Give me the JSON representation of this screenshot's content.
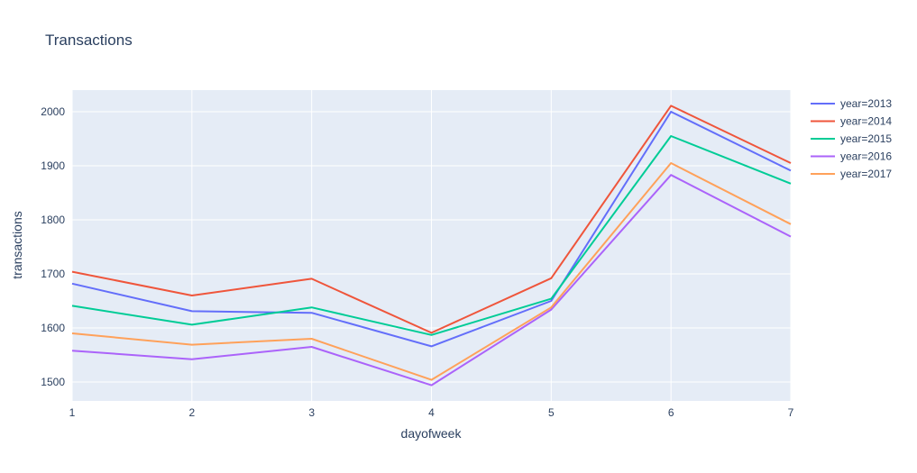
{
  "chart_data": {
    "type": "line",
    "title": "Transactions",
    "xlabel": "dayofweek",
    "ylabel": "transactions",
    "x": [
      1,
      2,
      3,
      4,
      5,
      6,
      7
    ],
    "xlim": [
      1,
      7
    ],
    "ylim": [
      1465,
      2040
    ],
    "yticks": [
      1500,
      1600,
      1700,
      1800,
      1900,
      2000
    ],
    "xticks": [
      1,
      2,
      3,
      4,
      5,
      6,
      7
    ],
    "grid": true,
    "legend_position": "top-right",
    "plot_background": "#e5ecf6",
    "series": [
      {
        "name": "year=2013",
        "color": "#636efa",
        "values": [
          1682,
          1631,
          1628,
          1566,
          1650,
          2000,
          1891
        ]
      },
      {
        "name": "year=2014",
        "color": "#ef553b",
        "values": [
          1704,
          1660,
          1691,
          1591,
          1692,
          2011,
          1905
        ]
      },
      {
        "name": "year=2015",
        "color": "#00cc96",
        "values": [
          1641,
          1606,
          1638,
          1587,
          1654,
          1955,
          1867
        ]
      },
      {
        "name": "year=2016",
        "color": "#ab63fa",
        "values": [
          1558,
          1542,
          1565,
          1494,
          1634,
          1883,
          1769
        ]
      },
      {
        "name": "year=2017",
        "color": "#ffa15a",
        "values": [
          1590,
          1569,
          1580,
          1504,
          1638,
          1905,
          1792
        ]
      }
    ]
  }
}
